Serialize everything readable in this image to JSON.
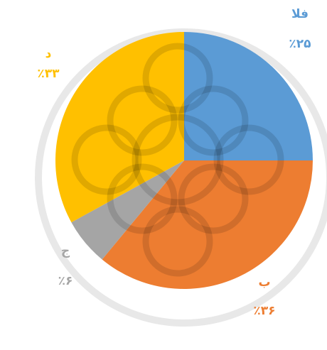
{
  "chart_data": {
    "type": "pie",
    "categories": [
      "الف",
      "ب",
      "ج",
      "د"
    ],
    "values": [
      25,
      36,
      6,
      33
    ],
    "value_labels": [
      "٪۲۵",
      "٪۳۶",
      "٪۶",
      "٪۳۳"
    ],
    "colors": [
      "#5b9bd5",
      "#ed7d31",
      "#a5a5a5",
      "#ffc000"
    ]
  }
}
